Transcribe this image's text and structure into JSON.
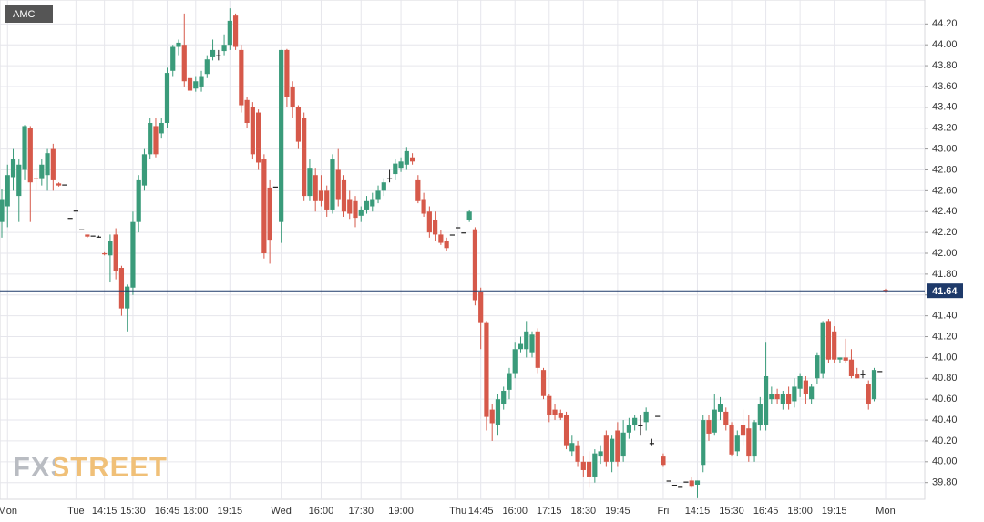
{
  "chart_data": {
    "type": "candlestick",
    "title": "AMC",
    "watermark": "FXSTREET",
    "up_color": "#3a9b7a",
    "down_color": "#d6594a",
    "doji_color": "#222222",
    "last_price_color": "#1e3a6a",
    "ylim": [
      39.64,
      44.43
    ],
    "yticks": [
      {
        "value": 39.8,
        "label": "39.80"
      },
      {
        "value": 40.0,
        "label": "40.00"
      },
      {
        "value": 40.2,
        "label": "40.20"
      },
      {
        "value": 40.4,
        "label": "40.40"
      },
      {
        "value": 40.6,
        "label": "40.60"
      },
      {
        "value": 40.8,
        "label": "40.80"
      },
      {
        "value": 41.0,
        "label": "41.00"
      },
      {
        "value": 41.2,
        "label": "41.20"
      },
      {
        "value": 41.4,
        "label": "41.40"
      },
      {
        "value": 41.6,
        "label": "41.60"
      },
      {
        "value": 41.8,
        "label": "41.80"
      },
      {
        "value": 42.0,
        "label": "42.00"
      },
      {
        "value": 42.2,
        "label": "42.20"
      },
      {
        "value": 42.4,
        "label": "42.40"
      },
      {
        "value": 42.6,
        "label": "42.60"
      },
      {
        "value": 42.8,
        "label": "42.80"
      },
      {
        "value": 43.0,
        "label": "43.00"
      },
      {
        "value": 43.2,
        "label": "43.20"
      },
      {
        "value": 43.4,
        "label": "43.40"
      },
      {
        "value": 43.6,
        "label": "43.60"
      },
      {
        "value": 43.8,
        "label": "43.80"
      },
      {
        "value": 44.0,
        "label": "44.00"
      },
      {
        "value": 44.2,
        "label": "44.20"
      }
    ],
    "grid": true,
    "last_price": 41.64,
    "categories": [
      null,
      "Mon",
      null,
      null,
      null,
      null,
      null,
      null,
      null,
      null,
      null,
      null,
      null,
      "Tue",
      null,
      null,
      null,
      null,
      "14:15",
      null,
      null,
      null,
      null,
      "15:30",
      null,
      null,
      null,
      null,
      null,
      "16:45",
      null,
      null,
      null,
      null,
      "18:00",
      null,
      null,
      null,
      null,
      null,
      "19:15",
      null,
      null,
      null,
      null,
      null,
      null,
      null,
      null,
      "Wed",
      null,
      null,
      null,
      null,
      null,
      null,
      "16:00",
      null,
      null,
      null,
      null,
      null,
      null,
      "17:30",
      null,
      null,
      null,
      null,
      null,
      null,
      "19:00",
      null,
      null,
      null,
      null,
      null,
      null,
      null,
      null,
      null,
      "Thu",
      null,
      null,
      null,
      "14:45",
      null,
      null,
      null,
      null,
      null,
      "16:00",
      null,
      null,
      null,
      null,
      null,
      "17:15",
      null,
      null,
      null,
      null,
      null,
      "18:30",
      null,
      null,
      null,
      null,
      null,
      "19:45",
      null,
      null,
      null,
      null,
      null,
      null,
      null,
      "Fri",
      null,
      null,
      null,
      null,
      null,
      "14:15",
      null,
      null,
      null,
      null,
      null,
      "15:30",
      null,
      null,
      null,
      null,
      null,
      "16:45",
      null,
      null,
      null,
      null,
      null,
      "18:00",
      null,
      null,
      null,
      null,
      null,
      "19:15",
      null,
      null,
      null,
      null,
      null,
      null,
      null,
      null,
      "Mon"
    ],
    "open": [
      42.3,
      42.45,
      42.73,
      42.55,
      42.8,
      43.2,
      42.72,
      42.72,
      42.75,
      43.0,
      42.67,
      42.66,
      42.34,
      42.41,
      42.23,
      42.18,
      42.17,
      42.16,
      42.0,
      41.98,
      42.18,
      41.86,
      41.47,
      41.67,
      42.3,
      42.65,
      42.95,
      43.22,
      43.15,
      43.25,
      43.75,
      43.98,
      44.0,
      43.68,
      43.58,
      43.6,
      43.72,
      43.88,
      43.9,
      43.94,
      44.0,
      44.28,
      43.95,
      43.47,
      43.4,
      43.35,
      42.9,
      42.63,
      42.64,
      42.3,
      43.95,
      43.6,
      43.4,
      43.3,
      42.55,
      42.75,
      42.6,
      42.6,
      42.42,
      42.8,
      42.7,
      42.52,
      42.5,
      42.36,
      42.42,
      42.45,
      42.52,
      42.6,
      42.72,
      42.76,
      42.82,
      42.85,
      42.92,
      42.7,
      42.52,
      42.4,
      42.32,
      42.18,
      42.12,
      42.18,
      42.25,
      42.2,
      42.32,
      42.23,
      41.63,
      41.33,
      40.5,
      40.35,
      40.55,
      40.69,
      40.85,
      41.08,
      41.08,
      41.05,
      41.25,
      40.88,
      40.63,
      40.5,
      40.47,
      40.45,
      40.1,
      40.15,
      40.0,
      40.0,
      39.85,
      40.05,
      40.25,
      40.0,
      40.3,
      40.05,
      40.28,
      40.35,
      40.35,
      40.38,
      40.18,
      40.44,
      40.05,
      39.82,
      39.78,
      39.76,
      39.81,
      39.82,
      39.78,
      39.97,
      40.4,
      40.28,
      40.48,
      40.48,
      40.35,
      40.1,
      40.35,
      40.32,
      40.05,
      40.35,
      40.35,
      40.6,
      40.65,
      40.55,
      40.65,
      40.58,
      40.7,
      40.78,
      40.6,
      40.8,
      40.85,
      41.35,
      41.25,
      40.98,
      41.0,
      40.98,
      40.84,
      40.84,
      40.75,
      40.6,
      40.87,
      41.65
    ],
    "high": [
      42.62,
      42.85,
      43.0,
      42.9,
      43.23,
      43.22,
      42.82,
      42.9,
      43.0,
      43.05,
      42.68,
      42.66,
      42.34,
      42.41,
      42.23,
      42.18,
      42.17,
      42.17,
      42.01,
      42.18,
      42.24,
      41.88,
      41.7,
      42.4,
      42.75,
      43.0,
      43.3,
      43.3,
      43.3,
      43.78,
      44.0,
      44.05,
      44.3,
      43.75,
      43.7,
      43.75,
      43.9,
      44.05,
      43.95,
      44.1,
      44.35,
      44.3,
      44.0,
      43.5,
      43.45,
      43.38,
      42.95,
      42.7,
      42.64,
      43.95,
      43.96,
      43.65,
      43.42,
      43.35,
      42.9,
      42.82,
      42.75,
      42.65,
      42.95,
      43.0,
      42.75,
      42.6,
      42.55,
      42.45,
      42.55,
      42.58,
      42.65,
      42.72,
      42.8,
      42.9,
      42.92,
      43.02,
      42.96,
      42.75,
      42.58,
      42.45,
      42.4,
      42.22,
      42.15,
      42.18,
      42.25,
      42.2,
      42.42,
      42.25,
      41.67,
      41.35,
      40.55,
      40.65,
      40.72,
      40.9,
      41.15,
      41.2,
      41.35,
      41.25,
      41.28,
      40.9,
      40.65,
      40.55,
      40.5,
      40.48,
      40.25,
      40.2,
      40.05,
      40.1,
      40.12,
      40.15,
      40.3,
      40.25,
      40.38,
      40.4,
      40.42,
      40.45,
      40.45,
      40.52,
      40.22,
      40.44,
      40.08,
      39.82,
      39.78,
      39.76,
      39.81,
      39.85,
      39.82,
      40.45,
      40.45,
      40.65,
      40.62,
      40.52,
      40.38,
      40.3,
      40.5,
      40.45,
      40.4,
      40.62,
      41.15,
      40.72,
      40.7,
      40.68,
      40.72,
      40.8,
      40.85,
      40.82,
      40.75,
      41.05,
      41.35,
      41.37,
      41.3,
      41.0,
      41.18,
      41.08,
      40.9,
      40.88,
      40.78,
      40.9,
      40.87,
      41.66
    ],
    "low": [
      42.15,
      42.25,
      42.6,
      42.3,
      42.7,
      42.3,
      42.6,
      42.65,
      42.6,
      42.6,
      42.64,
      42.66,
      42.34,
      42.41,
      42.23,
      42.15,
      42.17,
      42.15,
      41.98,
      41.72,
      41.75,
      41.4,
      41.25,
      41.6,
      42.2,
      42.6,
      42.9,
      42.92,
      43.1,
      43.2,
      43.7,
      43.9,
      43.6,
      43.5,
      43.55,
      43.55,
      43.68,
      43.85,
      43.85,
      43.9,
      43.95,
      43.95,
      43.35,
      43.2,
      42.9,
      42.8,
      41.95,
      41.9,
      42.64,
      42.1,
      43.4,
      43.3,
      43.0,
      42.5,
      42.5,
      42.4,
      42.45,
      42.35,
      42.38,
      42.45,
      42.35,
      42.33,
      42.25,
      42.3,
      42.38,
      42.4,
      42.48,
      42.55,
      42.68,
      42.7,
      42.78,
      42.8,
      42.85,
      42.48,
      42.35,
      42.15,
      42.12,
      42.08,
      42.02,
      42.18,
      42.25,
      42.2,
      42.3,
      41.5,
      41.08,
      40.3,
      40.2,
      40.25,
      40.5,
      40.6,
      40.8,
      41.05,
      41.0,
      41.0,
      40.85,
      40.6,
      40.38,
      40.4,
      40.4,
      40.12,
      40.05,
      39.95,
      39.85,
      39.75,
      39.8,
      39.98,
      39.95,
      39.9,
      39.95,
      40.0,
      40.22,
      40.3,
      40.25,
      40.3,
      40.15,
      40.44,
      39.95,
      39.82,
      39.78,
      39.76,
      39.81,
      39.75,
      39.65,
      39.9,
      40.2,
      40.25,
      40.4,
      40.3,
      40.05,
      40.05,
      40.15,
      40.0,
      40.0,
      40.3,
      40.3,
      40.55,
      40.55,
      40.5,
      40.5,
      40.52,
      40.62,
      40.55,
      40.55,
      40.75,
      40.8,
      40.95,
      40.95,
      40.95,
      40.95,
      40.8,
      40.8,
      40.8,
      40.5,
      40.58,
      40.87,
      41.62
    ],
    "close": [
      42.52,
      42.75,
      42.9,
      42.85,
      43.22,
      42.68,
      42.71,
      42.85,
      42.96,
      42.7,
      42.65,
      42.66,
      42.34,
      42.41,
      42.23,
      42.16,
      42.17,
      42.16,
      41.99,
      42.12,
      41.83,
      41.47,
      41.68,
      42.3,
      42.7,
      42.95,
      43.25,
      42.95,
      43.25,
      43.73,
      43.98,
      44.02,
      43.65,
      43.56,
      43.65,
      43.7,
      43.86,
      43.95,
      43.9,
      44.0,
      44.23,
      43.98,
      43.42,
      43.25,
      42.95,
      42.87,
      42.0,
      42.13,
      42.64,
      43.95,
      43.5,
      43.4,
      43.07,
      42.55,
      42.82,
      42.5,
      42.5,
      42.42,
      42.9,
      42.52,
      42.4,
      42.38,
      42.34,
      42.42,
      42.5,
      42.52,
      42.6,
      42.68,
      42.72,
      42.86,
      42.88,
      42.98,
      42.88,
      42.5,
      42.38,
      42.2,
      42.18,
      42.1,
      42.05,
      42.18,
      42.25,
      42.2,
      42.4,
      41.55,
      41.33,
      40.43,
      40.37,
      40.6,
      40.68,
      40.85,
      41.08,
      41.13,
      41.25,
      41.22,
      40.9,
      40.63,
      40.45,
      40.45,
      40.42,
      40.15,
      40.18,
      40.0,
      39.92,
      39.85,
      40.08,
      40.1,
      40.0,
      40.22,
      40.0,
      40.28,
      40.35,
      40.42,
      40.35,
      40.48,
      40.18,
      40.44,
      39.97,
      39.82,
      39.78,
      39.76,
      39.81,
      39.76,
      39.82,
      40.4,
      40.27,
      40.5,
      40.55,
      40.35,
      40.07,
      40.25,
      40.25,
      40.05,
      40.38,
      40.55,
      40.82,
      40.65,
      40.6,
      40.65,
      40.55,
      40.72,
      40.82,
      40.65,
      40.72,
      41.02,
      41.33,
      40.98,
      40.98,
      41.0,
      40.97,
      40.82,
      40.8,
      40.84,
      40.55,
      40.88,
      40.87,
      41.64
    ]
  }
}
